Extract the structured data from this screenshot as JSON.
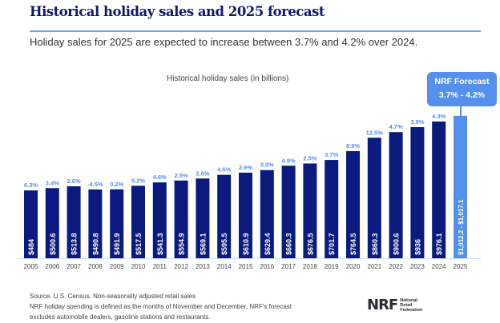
{
  "header": {
    "title": "Historical holiday sales and 2025 forecast",
    "subtitle": "Holiday sales for 2025 are expected to increase between 3.7% and 4.2% over 2024."
  },
  "forecast": {
    "title": "NRF Forecast",
    "range": "3.7% - 4.2%"
  },
  "footer": {
    "line1": "Source. U.S. Census. Non-seasonally adjusted retail sales",
    "line2": "NRF holiday spending is defined as the months of November and December. NRF's forecast",
    "line3": "excludes automobile dealers, gasoline stations and restaurants.",
    "logo_mark": "NRF",
    "logo_line1": "National",
    "logo_line2": "Retail",
    "logo_line3": "Federation"
  },
  "colors": {
    "bar": "#0a1a7f",
    "forecast_bar": "#5590ec",
    "pct_label": "#5590ec",
    "title": "#0f1a6e"
  },
  "chart_data": {
    "type": "bar",
    "title": "Historical holiday sales (in billions)",
    "xlabel": "",
    "ylabel": "",
    "ylim": [
      0,
      1050
    ],
    "grid": false,
    "categories": [
      "2005",
      "2006",
      "2007",
      "2008",
      "2009",
      "2010",
      "2011",
      "2012",
      "2013",
      "2014",
      "2015",
      "2016",
      "2017",
      "2018",
      "2019",
      "2020",
      "2021",
      "2022",
      "2023",
      "2024",
      "2025"
    ],
    "values": [
      484,
      500.6,
      513.8,
      490.8,
      491.9,
      517.5,
      541.3,
      554.9,
      569.1,
      595.5,
      610.9,
      629.4,
      660.3,
      676.5,
      701.7,
      764.5,
      860.3,
      900.6,
      936,
      976.1,
      1017.1
    ],
    "value_labels": [
      "$484",
      "$500.6",
      "$513.8",
      "$490.8",
      "$491.9",
      "$517.5",
      "$541.3",
      "$554.9",
      "$569.1",
      "$595.5",
      "$610.9",
      "$629.4",
      "$660.3",
      "$676.5",
      "$701.7",
      "$764.5",
      "$860.3",
      "$900.6",
      "$936",
      "$976.1",
      "$1,012.2 - $1,017.1"
    ],
    "growth_labels": [
      "6.3%",
      "3.4%",
      "2.6%",
      "-4.5%",
      "0.2%",
      "5.2%",
      "4.6%",
      "2.5%",
      "2.6%",
      "4.6%",
      "2.6%",
      "3.0%",
      "4.9%",
      "2.5%",
      "3.7%",
      "8.9%",
      "12.5%",
      "4.7%",
      "3.9%",
      "4.3%",
      ""
    ],
    "forecast_range": [
      1012.2,
      1017.1
    ],
    "forecast_index": 20
  }
}
